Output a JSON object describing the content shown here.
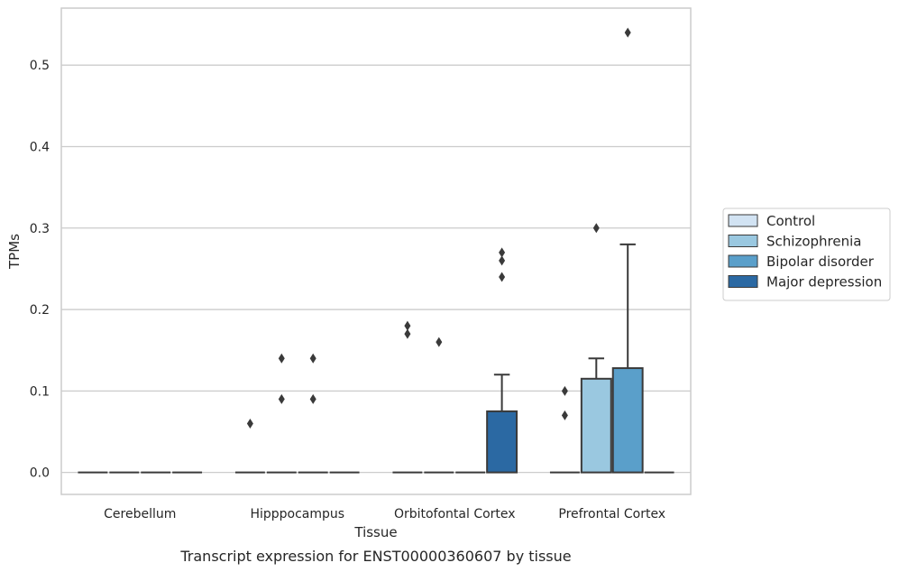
{
  "chart_data": {
    "type": "box",
    "xlabel": "Tissue",
    "ylabel": "TPMs",
    "caption": "Transcript expression for ENST00000360607 by tissue",
    "ylim": [
      -0.027,
      0.57
    ],
    "yticks": [
      0.0,
      0.1,
      0.2,
      0.3,
      0.4,
      0.5
    ],
    "ytick_labels": [
      "0.0",
      "0.1",
      "0.2",
      "0.3",
      "0.4",
      "0.5"
    ],
    "grid": "horizontal",
    "legend_position": "right",
    "categories": [
      "Cerebellum",
      "Hipppocampus",
      "Orbitofontal Cortex",
      "Prefrontal Cortex"
    ],
    "series": [
      {
        "name": "Control",
        "color": "#d2e3f3",
        "boxes": [
          {
            "q1": 0,
            "median": 0,
            "q3": 0,
            "whisker_low": 0,
            "whisker_high": 0,
            "outliers": []
          },
          {
            "q1": 0,
            "median": 0,
            "q3": 0,
            "whisker_low": 0,
            "whisker_high": 0,
            "outliers": [
              0.06
            ]
          },
          {
            "q1": 0,
            "median": 0,
            "q3": 0,
            "whisker_low": 0,
            "whisker_high": 0,
            "outliers": [
              0.17,
              0.18
            ]
          },
          {
            "q1": 0,
            "median": 0,
            "q3": 0,
            "whisker_low": 0,
            "whisker_high": 0,
            "outliers": [
              0.07,
              0.1
            ]
          }
        ]
      },
      {
        "name": "Schizophrenia",
        "color": "#9ac8e0",
        "boxes": [
          {
            "q1": 0,
            "median": 0,
            "q3": 0,
            "whisker_low": 0,
            "whisker_high": 0,
            "outliers": []
          },
          {
            "q1": 0,
            "median": 0,
            "q3": 0,
            "whisker_low": 0,
            "whisker_high": 0,
            "outliers": [
              0.09,
              0.14
            ]
          },
          {
            "q1": 0,
            "median": 0,
            "q3": 0,
            "whisker_low": 0,
            "whisker_high": 0,
            "outliers": [
              0.16
            ]
          },
          {
            "q1": 0,
            "median": 0,
            "q3": 0.115,
            "whisker_low": 0,
            "whisker_high": 0.14,
            "outliers": [
              0.3
            ]
          }
        ]
      },
      {
        "name": "Bipolar disorder",
        "color": "#5a9fca",
        "boxes": [
          {
            "q1": 0,
            "median": 0,
            "q3": 0,
            "whisker_low": 0,
            "whisker_high": 0,
            "outliers": []
          },
          {
            "q1": 0,
            "median": 0,
            "q3": 0,
            "whisker_low": 0,
            "whisker_high": 0,
            "outliers": [
              0.09,
              0.14
            ]
          },
          {
            "q1": 0,
            "median": 0,
            "q3": 0,
            "whisker_low": 0,
            "whisker_high": 0,
            "outliers": []
          },
          {
            "q1": 0,
            "median": 0,
            "q3": 0.128,
            "whisker_low": 0,
            "whisker_high": 0.28,
            "outliers": [
              0.54
            ]
          }
        ]
      },
      {
        "name": "Major depression",
        "color": "#2b69a3",
        "boxes": [
          {
            "q1": 0,
            "median": 0,
            "q3": 0,
            "whisker_low": 0,
            "whisker_high": 0,
            "outliers": []
          },
          {
            "q1": 0,
            "median": 0,
            "q3": 0,
            "whisker_low": 0,
            "whisker_high": 0,
            "outliers": []
          },
          {
            "q1": 0,
            "median": 0,
            "q3": 0.075,
            "whisker_low": 0,
            "whisker_high": 0.12,
            "outliers": [
              0.24,
              0.26,
              0.27
            ]
          },
          {
            "q1": 0,
            "median": 0,
            "q3": 0,
            "whisker_low": 0,
            "whisker_high": 0,
            "outliers": []
          }
        ]
      }
    ]
  }
}
